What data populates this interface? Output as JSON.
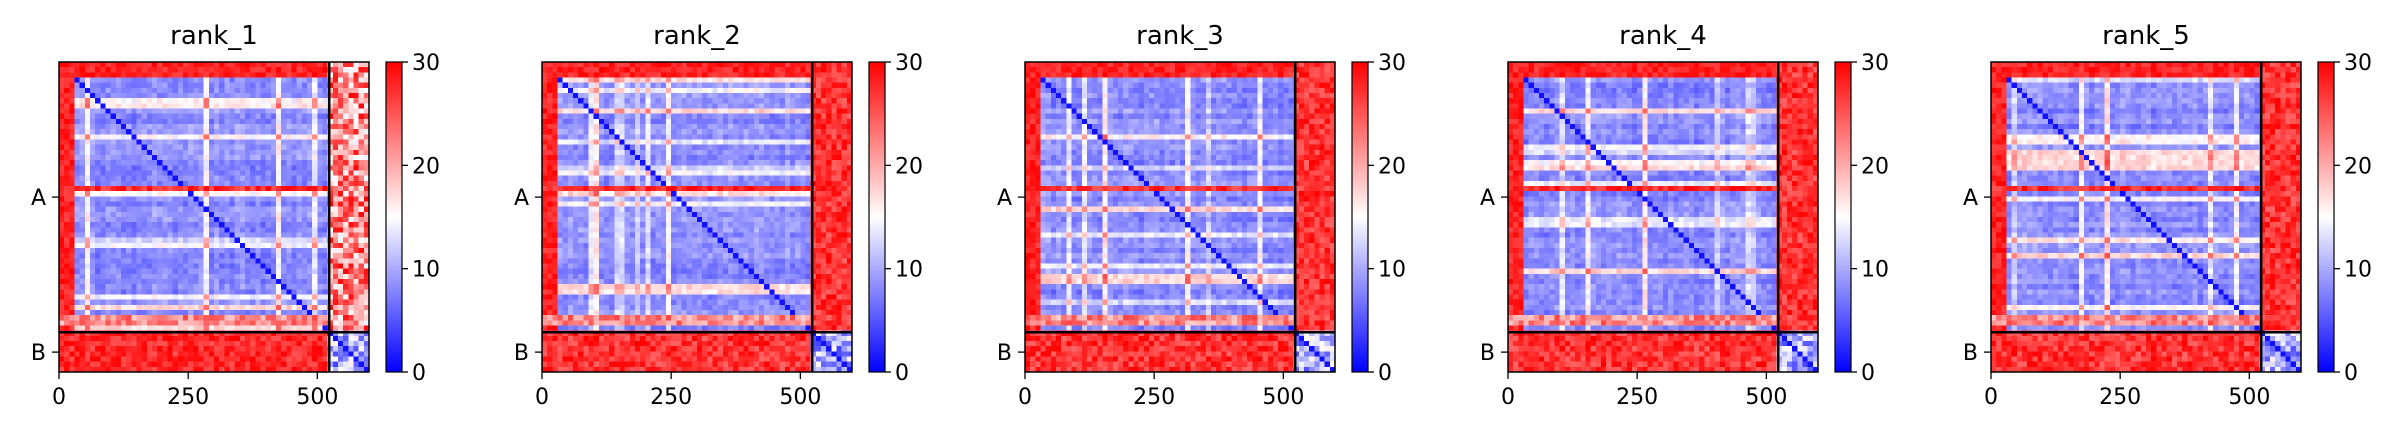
{
  "chart_data": [
    {
      "type": "heatmap",
      "title": "rank_1",
      "x_ticks": [
        "0",
        "250",
        "500"
      ],
      "x_tick_values": [
        0,
        250,
        500
      ],
      "y_chain_labels": [
        "A",
        "B"
      ],
      "chains": [
        {
          "name": "A",
          "start": 0,
          "end": 523
        },
        {
          "name": "B",
          "start": 523,
          "end": 600
        }
      ],
      "xlim": [
        0,
        600
      ],
      "ylim": [
        600,
        0
      ],
      "colorbar": {
        "ticks": [
          "0",
          "10",
          "20",
          "30"
        ],
        "range": [
          0,
          30
        ],
        "colors": [
          "#0000ff",
          "#ffffff",
          "#ff0000"
        ]
      },
      "interchain_error": "mixed"
    },
    {
      "type": "heatmap",
      "title": "rank_2",
      "x_ticks": [
        "0",
        "250",
        "500"
      ],
      "x_tick_values": [
        0,
        250,
        500
      ],
      "y_chain_labels": [
        "A",
        "B"
      ],
      "chains": [
        {
          "name": "A",
          "start": 0,
          "end": 523
        },
        {
          "name": "B",
          "start": 523,
          "end": 600
        }
      ],
      "xlim": [
        0,
        600
      ],
      "ylim": [
        600,
        0
      ],
      "colorbar": {
        "ticks": [
          "0",
          "10",
          "20",
          "30"
        ],
        "range": [
          0,
          30
        ],
        "colors": [
          "#0000ff",
          "#ffffff",
          "#ff0000"
        ]
      },
      "interchain_error": "high"
    },
    {
      "type": "heatmap",
      "title": "rank_3",
      "x_ticks": [
        "0",
        "250",
        "500"
      ],
      "x_tick_values": [
        0,
        250,
        500
      ],
      "y_chain_labels": [
        "A",
        "B"
      ],
      "chains": [
        {
          "name": "A",
          "start": 0,
          "end": 523
        },
        {
          "name": "B",
          "start": 523,
          "end": 600
        }
      ],
      "xlim": [
        0,
        600
      ],
      "ylim": [
        600,
        0
      ],
      "colorbar": {
        "ticks": [
          "0",
          "10",
          "20",
          "30"
        ],
        "range": [
          0,
          30
        ],
        "colors": [
          "#0000ff",
          "#ffffff",
          "#ff0000"
        ]
      },
      "interchain_error": "high"
    },
    {
      "type": "heatmap",
      "title": "rank_4",
      "x_ticks": [
        "0",
        "250",
        "500"
      ],
      "x_tick_values": [
        0,
        250,
        500
      ],
      "y_chain_labels": [
        "A",
        "B"
      ],
      "chains": [
        {
          "name": "A",
          "start": 0,
          "end": 523
        },
        {
          "name": "B",
          "start": 523,
          "end": 600
        }
      ],
      "xlim": [
        0,
        600
      ],
      "ylim": [
        600,
        0
      ],
      "colorbar": {
        "ticks": [
          "0",
          "10",
          "20",
          "30"
        ],
        "range": [
          0,
          30
        ],
        "colors": [
          "#0000ff",
          "#ffffff",
          "#ff0000"
        ]
      },
      "interchain_error": "high"
    },
    {
      "type": "heatmap",
      "title": "rank_5",
      "x_ticks": [
        "0",
        "250",
        "500"
      ],
      "x_tick_values": [
        0,
        250,
        500
      ],
      "y_chain_labels": [
        "A",
        "B"
      ],
      "chains": [
        {
          "name": "A",
          "start": 0,
          "end": 523
        },
        {
          "name": "B",
          "start": 523,
          "end": 600
        }
      ],
      "xlim": [
        0,
        600
      ],
      "ylim": [
        600,
        0
      ],
      "colorbar": {
        "ticks": [
          "0",
          "10",
          "20",
          "30"
        ],
        "range": [
          0,
          30
        ],
        "colors": [
          "#0000ff",
          "#ffffff",
          "#ff0000"
        ]
      },
      "interchain_error": "high"
    }
  ]
}
